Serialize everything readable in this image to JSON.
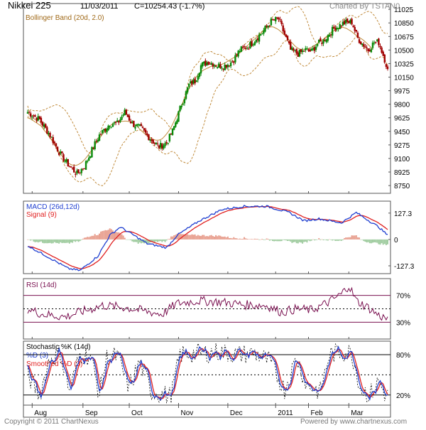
{
  "header": {
    "symbol": "Nikkei 225",
    "date": "11/03/2011",
    "quote": "C=10254.43 (-1.7%)",
    "charted_by": "Charted By TSTAN0"
  },
  "footer": {
    "copyright": "Copyright © 2011 ChartNexus",
    "powered_by": "Powered by www.chartnexus.com"
  },
  "colors": {
    "up": "#0a8a0a",
    "down": "#a00000",
    "band": "#c08a3a",
    "macd": "#1f3fd0",
    "signal": "#e02020",
    "rsi": "#7a1050",
    "hist_up": "#e8a090",
    "hist_down": "#a0cca0",
    "frame": "#7a1050",
    "grid": "#cfcfcf",
    "stochk": "#000000",
    "stochd": "#1f3fd0",
    "smooth": "#e02020"
  },
  "x_axis_labels": [
    "Aug",
    "Sep",
    "Oct",
    "Nov",
    "Dec",
    "2011",
    "Feb",
    "Mar"
  ],
  "chart_data": [
    {
      "id": "price",
      "type": "candlestick",
      "title": "Nikkei 225",
      "legend": "Bollinger Band (20d, 2.0)",
      "y_ticks": [
        11025,
        10850,
        10675,
        10500,
        10325,
        10150,
        9975,
        9800,
        9625,
        9450,
        9275,
        9100,
        8925,
        8750
      ],
      "ylim": [
        8650,
        11100
      ],
      "n": 164,
      "anchors": [
        [
          0,
          9700
        ],
        [
          8,
          9600
        ],
        [
          15,
          9400
        ],
        [
          22,
          9150
        ],
        [
          28,
          9000
        ],
        [
          33,
          8900
        ],
        [
          38,
          9000
        ],
        [
          44,
          9250
        ],
        [
          48,
          9400
        ],
        [
          55,
          9550
        ],
        [
          60,
          9550
        ],
        [
          65,
          9700
        ],
        [
          70,
          9550
        ],
        [
          75,
          9500
        ],
        [
          80,
          9400
        ],
        [
          85,
          9300
        ],
        [
          88,
          9250
        ],
        [
          93,
          9300
        ],
        [
          97,
          9450
        ],
        [
          103,
          9800
        ],
        [
          108,
          10050
        ],
        [
          112,
          10100
        ],
        [
          116,
          10300
        ],
        [
          121,
          10350
        ],
        [
          127,
          10300
        ],
        [
          132,
          10300
        ],
        [
          137,
          10350
        ],
        [
          142,
          10500
        ],
        [
          148,
          10550
        ],
        [
          153,
          10650
        ],
        [
          158,
          10750
        ],
        [
          163,
          10870
        ],
        [
          168,
          10900
        ],
        [
          172,
          10700
        ],
        [
          176,
          10500
        ],
        [
          181,
          10450
        ],
        [
          186,
          10500
        ],
        [
          190,
          10480
        ],
        [
          194,
          10580
        ],
        [
          198,
          10620
        ],
        [
          205,
          10780
        ],
        [
          212,
          10850
        ],
        [
          217,
          10860
        ],
        [
          221,
          10650
        ],
        [
          228,
          10500
        ],
        [
          232,
          10600
        ],
        [
          235,
          10600
        ],
        [
          239,
          10380
        ],
        [
          241,
          10254
        ]
      ],
      "last_close": 10254.43
    },
    {
      "id": "macd",
      "type": "line",
      "legend": [
        "MACD (26d,12d)",
        "Signal (9)"
      ],
      "y_ticks": [
        127.3,
        0,
        -127.3
      ],
      "ylim": [
        -165,
        185
      ],
      "anchors": [
        [
          0,
          -30
        ],
        [
          15,
          -90
        ],
        [
          27,
          -140
        ],
        [
          35,
          -150
        ],
        [
          47,
          -80
        ],
        [
          55,
          20
        ],
        [
          62,
          60
        ],
        [
          70,
          25
        ],
        [
          80,
          -20
        ],
        [
          93,
          -40
        ],
        [
          100,
          20
        ],
        [
          115,
          90
        ],
        [
          130,
          145
        ],
        [
          145,
          160
        ],
        [
          160,
          160
        ],
        [
          175,
          130
        ],
        [
          185,
          90
        ],
        [
          195,
          100
        ],
        [
          210,
          80
        ],
        [
          220,
          130
        ],
        [
          235,
          60
        ],
        [
          241,
          20
        ]
      ]
    },
    {
      "id": "rsi",
      "type": "line",
      "legend": "RSI (14d)",
      "y_ticks": [
        70,
        30
      ],
      "ylim": [
        5,
        95
      ],
      "levels": [
        70,
        50,
        30
      ],
      "anchors": [
        [
          0,
          50
        ],
        [
          10,
          42
        ],
        [
          25,
          38
        ],
        [
          35,
          45
        ],
        [
          50,
          55
        ],
        [
          65,
          52
        ],
        [
          75,
          48
        ],
        [
          90,
          42
        ],
        [
          100,
          58
        ],
        [
          115,
          62
        ],
        [
          130,
          60
        ],
        [
          145,
          56
        ],
        [
          160,
          55
        ],
        [
          170,
          45
        ],
        [
          180,
          50
        ],
        [
          190,
          48
        ],
        [
          200,
          58
        ],
        [
          210,
          72
        ],
        [
          215,
          85
        ],
        [
          220,
          62
        ],
        [
          228,
          52
        ],
        [
          235,
          40
        ],
        [
          241,
          35
        ]
      ]
    },
    {
      "id": "stochastic",
      "type": "line",
      "legend": [
        "Stochastic %K (14d)",
        "%D (3)",
        "Smoothed %D (3)"
      ],
      "y_ticks": [
        80,
        20
      ],
      "ylim": [
        5,
        100
      ],
      "levels": [
        80,
        50,
        20
      ],
      "anchors": [
        [
          0,
          50
        ],
        [
          8,
          20
        ],
        [
          15,
          75
        ],
        [
          22,
          82
        ],
        [
          28,
          25
        ],
        [
          35,
          80
        ],
        [
          42,
          78
        ],
        [
          48,
          22
        ],
        [
          53,
          75
        ],
        [
          60,
          78
        ],
        [
          68,
          30
        ],
        [
          75,
          70
        ],
        [
          83,
          25
        ],
        [
          96,
          18
        ],
        [
          102,
          80
        ],
        [
          115,
          82
        ],
        [
          128,
          84
        ],
        [
          140,
          80
        ],
        [
          152,
          82
        ],
        [
          162,
          70
        ],
        [
          172,
          28
        ],
        [
          180,
          75
        ],
        [
          187,
          35
        ],
        [
          196,
          25
        ],
        [
          202,
          80
        ],
        [
          210,
          84
        ],
        [
          217,
          82
        ],
        [
          223,
          30
        ],
        [
          229,
          20
        ],
        [
          235,
          40
        ],
        [
          240,
          18
        ]
      ]
    }
  ]
}
